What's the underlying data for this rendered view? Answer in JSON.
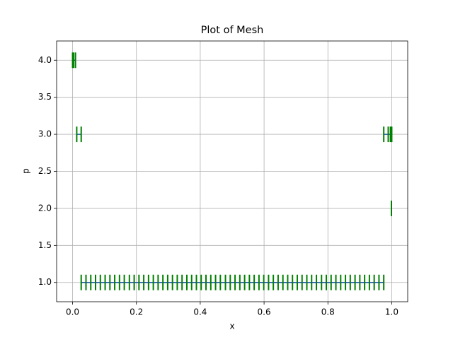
{
  "chart_data": {
    "type": "mesh",
    "title": "Plot of Mesh",
    "x_label": "x",
    "y_label": "p",
    "xlim": [
      -0.05,
      1.05
    ],
    "ylim": [
      0.74,
      4.26
    ],
    "xticks": [
      {
        "value": 0,
        "label": "0.0"
      },
      0.2,
      0.4,
      0.6,
      0.8,
      {
        "value": 1,
        "label": "1.0"
      }
    ],
    "yticks": [
      {
        "value": 1,
        "label": "1.0"
      },
      1.5,
      {
        "value": 2,
        "label": "2.0"
      },
      2.5,
      {
        "value": 3,
        "label": "3.0"
      },
      3.5,
      {
        "value": 4,
        "label": "4.0"
      }
    ],
    "grid": true,
    "line_color": "#1f4fb4",
    "marker_color": "#008000",
    "series": [
      {
        "x": [
          0.027,
          0.042,
          0.057,
          0.072,
          0.087,
          0.102,
          0.117,
          0.132,
          0.147,
          0.162,
          0.178,
          0.193,
          0.208,
          0.223,
          0.238,
          0.253,
          0.268,
          0.283,
          0.298,
          0.313,
          0.328,
          0.343,
          0.358,
          0.373,
          0.388,
          0.403,
          0.418,
          0.433,
          0.448,
          0.463,
          0.479,
          0.494,
          0.509,
          0.524,
          0.539,
          0.554,
          0.569,
          0.584,
          0.599,
          0.614,
          0.629,
          0.644,
          0.659,
          0.674,
          0.689,
          0.704,
          0.719,
          0.734,
          0.749,
          0.764,
          0.78,
          0.795,
          0.81,
          0.825,
          0.84,
          0.855,
          0.87,
          0.885,
          0.9,
          0.915,
          0.93,
          0.945,
          0.96,
          0.975
        ],
        "values": [
          1,
          1,
          1,
          1,
          1,
          1,
          1,
          1,
          1,
          1,
          1,
          1,
          1,
          1,
          1,
          1,
          1,
          1,
          1,
          1,
          1,
          1,
          1,
          1,
          1,
          1,
          1,
          1,
          1,
          1,
          1,
          1,
          1,
          1,
          1,
          1,
          1,
          1,
          1,
          1,
          1,
          1,
          1,
          1,
          1,
          1,
          1,
          1,
          1,
          1,
          1,
          1,
          1,
          1,
          1,
          1,
          1,
          1,
          1,
          1,
          1,
          1,
          1,
          1
        ]
      },
      {
        "x": [
          0.999
        ],
        "values": [
          2
        ]
      },
      {
        "x": [
          0.013,
          0.027,
          null,
          0.975,
          0.989,
          0.996,
          1.0
        ],
        "values": [
          3,
          3,
          null,
          3,
          3,
          3,
          3
        ]
      },
      {
        "x": [
          0.0,
          0.003,
          0.009
        ],
        "values": [
          4,
          4,
          4
        ]
      }
    ]
  }
}
